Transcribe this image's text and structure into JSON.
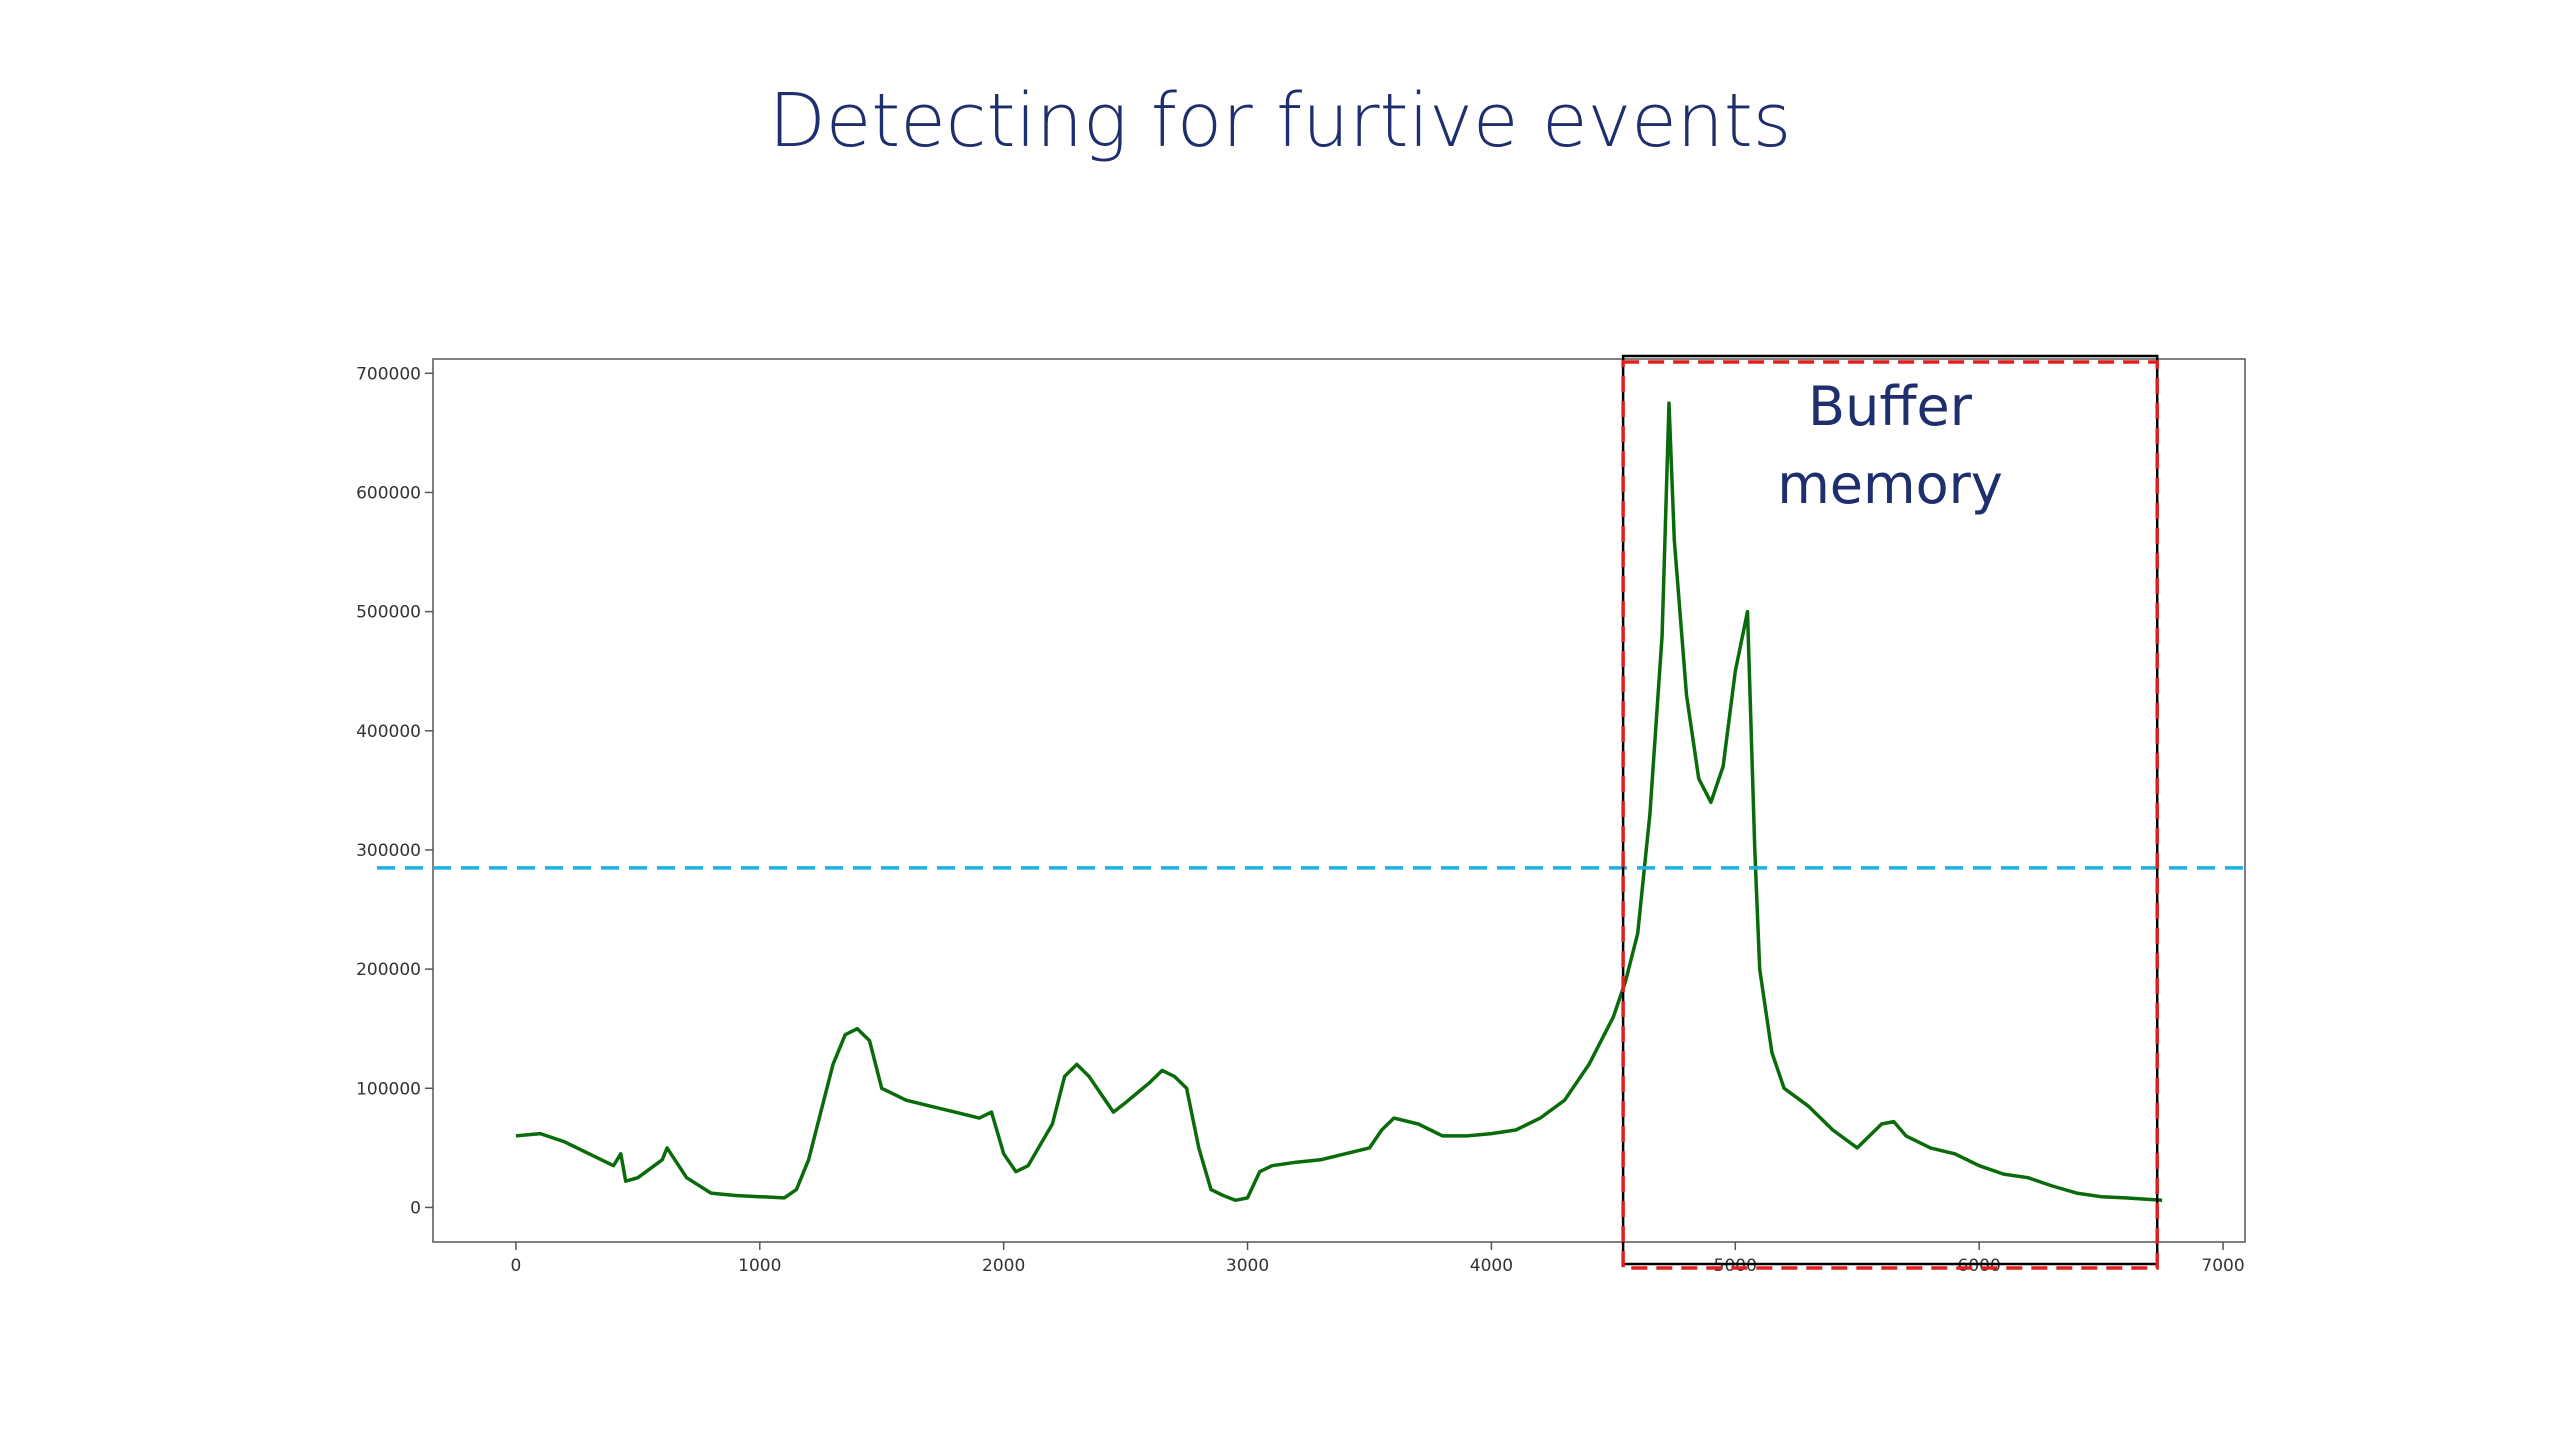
{
  "chart_data": {
    "type": "line",
    "title": "Detecting for furtive events",
    "annotation": "Buffer memory",
    "x": [
      0,
      100,
      200,
      300,
      400,
      430,
      450,
      500,
      600,
      620,
      700,
      800,
      900,
      1000,
      1100,
      1150,
      1200,
      1250,
      1300,
      1350,
      1400,
      1450,
      1500,
      1600,
      1700,
      1800,
      1900,
      1950,
      2000,
      2050,
      2100,
      2200,
      2250,
      2300,
      2350,
      2400,
      2450,
      2500,
      2600,
      2650,
      2700,
      2750,
      2800,
      2850,
      2900,
      2950,
      3000,
      3050,
      3100,
      3200,
      3300,
      3400,
      3500,
      3550,
      3600,
      3700,
      3800,
      3900,
      4000,
      4100,
      4200,
      4300,
      4400,
      4500,
      4550,
      4600,
      4650,
      4700,
      4728,
      4750,
      4800,
      4850,
      4900,
      4950,
      5000,
      5050,
      5080,
      5100,
      5150,
      5200,
      5300,
      5400,
      5500,
      5600,
      5650,
      5700,
      5800,
      5900,
      6000,
      6100,
      6200,
      6300,
      6400,
      6500,
      6600,
      6750
    ],
    "series": [
      {
        "color": "#0a6b0a",
        "values": [
          60000,
          62000,
          55000,
          45000,
          35000,
          45000,
          22000,
          25000,
          40000,
          50000,
          25000,
          12000,
          10000,
          9000,
          8000,
          15000,
          40000,
          80000,
          120000,
          145000,
          150000,
          140000,
          100000,
          90000,
          85000,
          80000,
          75000,
          80000,
          45000,
          30000,
          35000,
          70000,
          110000,
          120000,
          110000,
          95000,
          80000,
          88000,
          105000,
          115000,
          110000,
          100000,
          50000,
          15000,
          10000,
          6000,
          8000,
          30000,
          35000,
          38000,
          40000,
          45000,
          50000,
          65000,
          75000,
          70000,
          60000,
          60000,
          62000,
          65000,
          75000,
          90000,
          120000,
          160000,
          190000,
          230000,
          330000,
          480000,
          675000,
          560000,
          430000,
          360000,
          340000,
          370000,
          450000,
          500000,
          300000,
          200000,
          130000,
          100000,
          85000,
          65000,
          50000,
          70000,
          72000,
          60000,
          50000,
          45000,
          35000,
          28000,
          25000,
          18000,
          12000,
          9000,
          8000,
          6000
        ]
      }
    ],
    "threshold": 285000,
    "threshold_color": "#1fb0e0",
    "buffer_range": [
      4540,
      6730
    ],
    "buffer_color": "#e02020",
    "xlim": [
      -340,
      7090
    ],
    "ylim": [
      -29000,
      712000
    ],
    "xticks": [
      0,
      1000,
      2000,
      3000,
      4000,
      5000,
      6000,
      7000
    ],
    "yticks": [
      0,
      100000,
      200000,
      300000,
      400000,
      500000,
      600000,
      700000
    ]
  }
}
